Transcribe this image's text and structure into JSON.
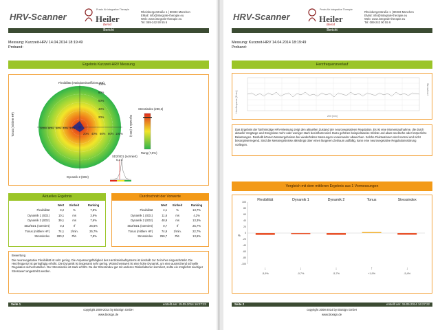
{
  "pages": [
    {
      "header": {
        "logo_main": "HRV-Scanner",
        "logo_brand": "Heiler",
        "logo_tag": "Praxis für integrative Therapie",
        "logo_sub": "Bernd",
        "address": [
          "Rheinbergerstraße 1 | 80333 München",
          "EMail: info@integrale-therapie.eu",
          "Web: www.integrale-therapie.eu",
          "Tel: 089-242 90 55 6"
        ],
        "bar_label": "Bericht"
      },
      "measurement": "Messung: Kurzzeit-HRV 14.04.2014 18:19:49",
      "proband": "Proband:",
      "section_title": "Ergebnis Kurzzeit-HRV Messung",
      "chart": {
        "top_label": "Flexibilität (Variationskoeffizient RR)",
        "right_label": "Dynamik 1 (SD1)",
        "bottom_label": "Dynamik 2 (SD2)",
        "left_label": "Tonus (mittlere HF)",
        "rings": [
          "100%",
          "80%",
          "60%",
          "40%",
          "20%"
        ],
        "right_ticks": [
          "20%",
          "40%",
          "60%",
          "80%",
          "100%"
        ],
        "left_ticks": [
          "100%",
          "80%",
          "60%",
          "40%",
          "20%"
        ],
        "stress_label": "Stressindex (280,2)",
        "stress_bottom": "Rang (7,8%)",
        "sd_label": "SD2/SD1 (normiert)",
        "sd_value": "0,3 rf"
      },
      "table_left": {
        "title": "Aktuelles Ergebnis",
        "headers": [
          "",
          "Wert",
          "Einheit",
          "Ranking"
        ],
        "rows": [
          [
            "Flexibilität",
            "3,2",
            "%",
            "7,8%"
          ],
          [
            "Dynamik 1 (SD1)",
            "10,1",
            "ms",
            "3,9%"
          ],
          [
            "Dynamik 2 (SD2)",
            "39,1",
            "ms",
            "7,6%"
          ],
          [
            "SD2/SD1 (normiert)",
            "0,3",
            "rf",
            "26,6%"
          ],
          [
            "Tonus (mittlere HF)",
            "74,1",
            "1/min.",
            "25,7%"
          ],
          [
            "Stressindex",
            "280,2",
            "Pkt.",
            "7,8%"
          ]
        ]
      },
      "table_right": {
        "title": "Durchschnitt der Vorwerte",
        "headers": [
          "",
          "Wert",
          "Einheit",
          "Ranking"
        ],
        "rows": [
          [
            "Flexibilität",
            "4,1",
            "%",
            "13,7%"
          ],
          [
            "Dynamik 1 (SD1)",
            "11,6",
            "ms",
            "4,2%"
          ],
          [
            "Dynamik 2 (SD2)",
            "48,9",
            "ms",
            "13,3%"
          ],
          [
            "SD2/SD1 (normiert)",
            "0,7",
            "rf",
            "25,7%"
          ],
          [
            "Tonus (mittlere HF)",
            "74,9",
            "1/min.",
            "22,7%"
          ],
          [
            "Stressindex",
            "259,7",
            "Pkt.",
            "13,6%"
          ]
        ]
      },
      "assessment_title": "Bewertung",
      "assessment_text": "Die neurovegetative Flexibilität ist sehr gering. Die Anpassungsfähigkeit des Herzkreislaufsystems ist deshalb zur Zeit eher eingeschränkt. Die Herzfrequenz ist geringfügig erhöht. Die Dynamik ist insgesamt sehr gering. Wünschenswert ist eine hohe Dynamik, um eine ausreichend schnelle Regulation sicherzustellen. Der Stressindex ist stark erhöht. Da der Stressindex gut mit anderen Risikofaktoren korreliert, sollte ein möglichst niedriger Stresswert angestrebt werden.",
      "footer_left": "Seite 1",
      "footer_right": "erstellt am: 15.05.2014 16:27:22",
      "copyright": "copyright 2008-2014 by BioSign GmbH",
      "site": "www.biosign.de"
    },
    {
      "header": {
        "logo_main": "HRV-Scanner",
        "logo_brand": "Heiler",
        "logo_tag": "Praxis für integrative Therapie",
        "logo_sub": "Bernd",
        "address": [
          "Rheinbergerstraße 1 | 80333 München",
          "EMail: info@integrale-therapie.eu",
          "Web: www.integrale-therapie.eu",
          "Tel: 089-242 90 55 6"
        ],
        "bar_label": "Bericht"
      },
      "measurement": "Messung: Kurzzeit-HRV 14.04.2014 18:19:49",
      "proband": "Proband:",
      "section_title": "Herzfrequenzverlauf",
      "hr_chart": {
        "ylabel": "Herzfrequenz [1/min]",
        "y2label": "Stresslevel",
        "xlabel": "Zeit [min]",
        "y_ticks": [
          "100",
          "90",
          "80",
          "70",
          "60",
          "50"
        ],
        "x_ticks": [
          "00:00",
          "00:30",
          "01:00",
          "01:30",
          "02:00",
          "02:30",
          "03:00",
          "03:30",
          "04:00",
          "04:30",
          "05:00"
        ]
      },
      "description": "Das Ergebnis der fünfminütige HRV-Messung zeigt den aktuellen Zustand der neurovegetativen Regulation. Es ist eine Momentaufnahme, die durch aktuelle Vorgänge und Ereignisse mehr oder weniger stark beeinflusst wird. Dazu gehören beispielsweise Infekte und akute seelische oder körperliche Belastungen. Deshalb können Messergebnisse bei wiederholten Messungen voneinander abweichen. Solche Fluktuationen sind normal und nicht besorgniserregend. Sind die Messergebnisse allerdings über einen längeren Zeitraum auffällig, kann eine neurovegetative Regulationsstörung vorliegen.",
      "compare_title": "Vergleich mit dem mittleren Ergebnis aus 1 Vormessungen",
      "compare_chart": {
        "type": "bar",
        "categories": [
          "Flexibilität",
          "Dynamik 1",
          "Dynamik 2",
          "Tonus",
          "Stressindex"
        ],
        "values": [
          -5.9,
          -0.7,
          -5.7,
          1.9,
          -5.4
        ],
        "value_labels": [
          "-5,9%",
          "-0,7%",
          "-5,7%",
          "+1,9%",
          "-5,4%"
        ],
        "colors": [
          "#e8532b",
          "#e8532b",
          "#e8532b",
          "#f0b030",
          "#e8532b"
        ],
        "ylabel": "%",
        "y_ticks": [
          "100",
          "80",
          "60",
          "40",
          "20",
          "0",
          "-20",
          "-40",
          "-60",
          "-80",
          "-100"
        ],
        "ylim": [
          -100,
          100
        ]
      },
      "footer_left": "Seite 2",
      "footer_right": "erstellt am: 15.05.2014 16:27:22",
      "copyright": "copyright 2008-2014 by BioSign GmbH",
      "site": "www.biosign.de"
    }
  ]
}
